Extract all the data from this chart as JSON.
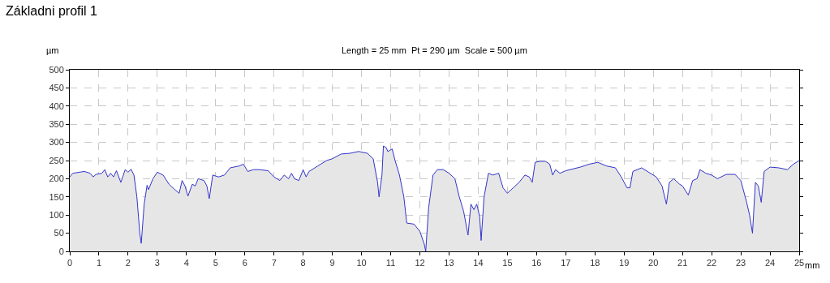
{
  "chart_data": {
    "type": "area",
    "title": "Základni profil 1",
    "subtitle": "Length = 25 mm  Pt = 290 µm  Scale = 500 µm",
    "xlabel": "mm",
    "ylabel": "µm",
    "x": [
      0,
      0.1,
      0.5,
      0.7,
      0.8,
      0.9,
      1.1,
      1.2,
      1.3,
      1.4,
      1.5,
      1.6,
      1.75,
      1.9,
      2.0,
      2.1,
      2.2,
      2.3,
      2.4,
      2.45,
      2.55,
      2.65,
      2.7,
      2.85,
      3.0,
      3.2,
      3.4,
      3.6,
      3.75,
      3.85,
      3.95,
      4.05,
      4.2,
      4.3,
      4.4,
      4.6,
      4.7,
      4.78,
      4.9,
      5.1,
      5.3,
      5.5,
      5.8,
      5.95,
      6.1,
      6.3,
      6.5,
      6.8,
      7.0,
      7.2,
      7.35,
      7.5,
      7.6,
      7.7,
      7.85,
      8.0,
      8.1,
      8.2,
      8.5,
      8.8,
      9.0,
      9.3,
      9.6,
      9.9,
      10.2,
      10.4,
      10.55,
      10.6,
      10.7,
      10.75,
      10.85,
      10.9,
      11.05,
      11.15,
      11.3,
      11.45,
      11.55,
      11.8,
      12.0,
      12.15,
      12.2,
      12.3,
      12.45,
      12.6,
      12.8,
      13.0,
      13.2,
      13.35,
      13.5,
      13.65,
      13.75,
      13.85,
      13.95,
      14.05,
      14.1,
      14.2,
      14.35,
      14.5,
      14.7,
      14.85,
      15.0,
      15.2,
      15.4,
      15.6,
      15.75,
      15.85,
      15.95,
      16.1,
      16.3,
      16.45,
      16.55,
      16.65,
      16.8,
      17.0,
      17.5,
      17.8,
      18.1,
      18.4,
      18.7,
      18.9,
      19.0,
      19.1,
      19.2,
      19.3,
      19.6,
      19.8,
      20.1,
      20.3,
      20.45,
      20.55,
      20.7,
      20.9,
      21.0,
      21.2,
      21.35,
      21.5,
      21.6,
      21.8,
      22.0,
      22.2,
      22.5,
      22.8,
      23.0,
      23.2,
      23.3,
      23.4,
      23.5,
      23.6,
      23.7,
      23.8,
      24.0,
      24.3,
      24.6,
      24.8,
      25.0
    ],
    "series": [
      {
        "color": "#3333cc",
        "values": [
          205,
          215,
          220,
          215,
          205,
          212,
          215,
          225,
          205,
          215,
          205,
          222,
          190,
          225,
          218,
          226,
          210,
          150,
          50,
          22,
          130,
          182,
          170,
          200,
          218,
          210,
          185,
          170,
          160,
          195,
          180,
          152,
          185,
          180,
          200,
          195,
          180,
          145,
          210,
          205,
          210,
          230,
          235,
          240,
          220,
          225,
          225,
          222,
          205,
          195,
          210,
          200,
          215,
          200,
          195,
          225,
          205,
          220,
          235,
          250,
          255,
          268,
          270,
          275,
          270,
          255,
          190,
          150,
          210,
          290,
          285,
          275,
          282,
          250,
          210,
          150,
          78,
          75,
          55,
          20,
          0,
          120,
          210,
          225,
          225,
          215,
          200,
          150,
          110,
          45,
          130,
          115,
          130,
          95,
          30,
          150,
          215,
          210,
          215,
          175,
          160,
          175,
          190,
          210,
          205,
          190,
          245,
          248,
          248,
          240,
          210,
          225,
          215,
          222,
          232,
          240,
          245,
          235,
          230,
          205,
          190,
          175,
          175,
          220,
          230,
          220,
          205,
          180,
          130,
          190,
          200,
          185,
          180,
          155,
          195,
          200,
          225,
          215,
          210,
          200,
          212,
          212,
          195,
          135,
          100,
          50,
          190,
          180,
          135,
          220,
          232,
          230,
          225,
          240,
          250
        ]
      }
    ],
    "xlim": [
      0,
      25
    ],
    "xticks": [
      0,
      1,
      2,
      3,
      4,
      5,
      6,
      7,
      8,
      9,
      10,
      11,
      12,
      13,
      14,
      15,
      16,
      17,
      18,
      19,
      20,
      21,
      22,
      23,
      24,
      25
    ],
    "ylim": [
      0,
      500
    ],
    "yticks": [
      0,
      50,
      100,
      150,
      200,
      250,
      300,
      350,
      400,
      450,
      500
    ],
    "grid": true,
    "line_style": "solid"
  }
}
